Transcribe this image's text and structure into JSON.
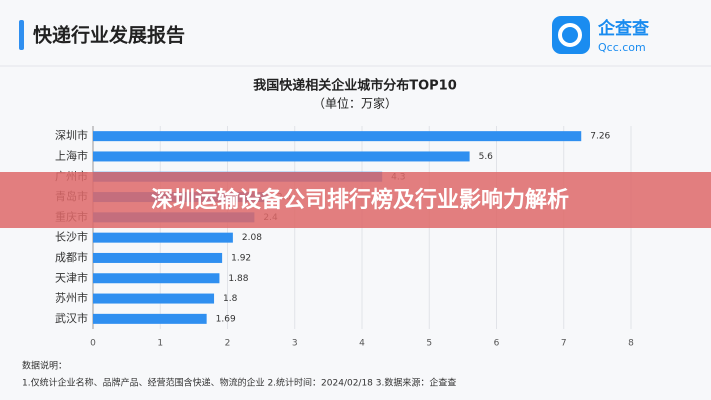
{
  "header": {
    "title": "快递行业发展报告",
    "logo_name": "企查查",
    "logo_url": "Qcc.com"
  },
  "banner": "深圳运输设备公司排行榜及行业影响力解析",
  "chart_data": {
    "type": "hbar",
    "title": "我国快递相关企业城市分布TOP10",
    "subtitle": "（单位：万家）",
    "categories": [
      "深圳市",
      "上海市",
      "广州市",
      "青岛市",
      "重庆市",
      "长沙市",
      "成都市",
      "天津市",
      "苏州市",
      "武汉市"
    ],
    "values": [
      7.26,
      5.6,
      4.3,
      2.6,
      2.4,
      2.08,
      1.92,
      1.88,
      1.8,
      1.69
    ],
    "color": "#2f8ff0",
    "xlim": [
      0,
      8
    ],
    "xticks": [
      0,
      1,
      2,
      3,
      4,
      5,
      6,
      7,
      8
    ],
    "grid": true
  },
  "notes": {
    "heading": "数据说明：",
    "text": "1.仅统计企业名称、品牌产品、经营范围含快递、物流的企业   2.统计时间：2024/02/18   3.数据来源：企查查"
  }
}
